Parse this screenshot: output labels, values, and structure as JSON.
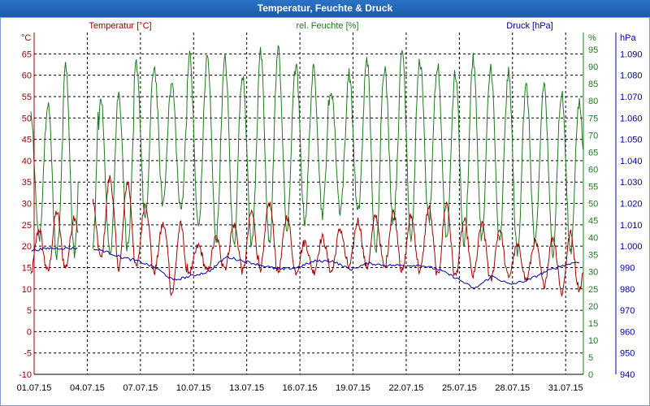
{
  "window": {
    "title": "Temperatur, Feuchte & Druck"
  },
  "colors": {
    "temperature": "#a00000",
    "humidity": "#207820",
    "pressure": "#0000a0",
    "grid": "#000000",
    "title_bar": "#1b5aa8"
  },
  "chart_data": {
    "type": "line",
    "title": "Temperatur, Feuchte & Druck",
    "x_ticks": [
      "01.07.15",
      "04.07.15",
      "07.07.15",
      "10.07.15",
      "13.07.15",
      "16.07.15",
      "19.07.15",
      "22.07.15",
      "25.07.15",
      "28.07.15",
      "31.07.15"
    ],
    "x_range_days": [
      0,
      31
    ],
    "axes": {
      "temperature": {
        "unit_label": "°C",
        "legend": "Temperatur [°C]",
        "ylim": [
          -10,
          70
        ],
        "ticks": [
          -10,
          -5,
          0,
          5,
          10,
          15,
          20,
          25,
          30,
          35,
          40,
          45,
          50,
          55,
          60,
          65
        ]
      },
      "humidity": {
        "unit_label": "%",
        "legend": "rel. Feuchte [%]",
        "ylim": [
          0,
          100
        ],
        "ticks": [
          0,
          5,
          10,
          15,
          20,
          25,
          30,
          35,
          40,
          45,
          50,
          55,
          60,
          65,
          70,
          75,
          80,
          85,
          90,
          95
        ]
      },
      "pressure": {
        "unit_label": "hPa",
        "legend": "Druck [hPa]",
        "ylim": [
          940,
          1100
        ],
        "ticks": [
          "940",
          "950",
          "960",
          "970",
          "980",
          "990",
          "1.000",
          "1.010",
          "1.020",
          "1.030",
          "1.040",
          "1.050",
          "1.060",
          "1.070",
          "1.080",
          "1.090"
        ]
      }
    },
    "series": [
      {
        "name": "Temperatur [°C]",
        "axis": "temperature",
        "gaps": [
          [
            2.5,
            3.3
          ]
        ],
        "daily_min": [
          13,
          14,
          15,
          16,
          17,
          15,
          15,
          14,
          9,
          14,
          14,
          15,
          14,
          15,
          14,
          14,
          14,
          14,
          15,
          15,
          15,
          14,
          14,
          13,
          13,
          13,
          12,
          13,
          12,
          11,
          9,
          10
        ],
        "daily_max": [
          24,
          28,
          27,
          31,
          36,
          35,
          30,
          25,
          25,
          20,
          22,
          25,
          28,
          30,
          27,
          21,
          22,
          24,
          26,
          27,
          28,
          27,
          29,
          30,
          26,
          25,
          24,
          20,
          21,
          22,
          23,
          22
        ]
      },
      {
        "name": "rel. Feuchte [%]",
        "axis": "humidity",
        "gaps": [
          [
            2.5,
            3.3
          ]
        ],
        "daily_min": [
          40,
          35,
          35,
          34,
          35,
          37,
          45,
          50,
          48,
          43,
          40,
          38,
          38,
          38,
          42,
          45,
          47,
          48,
          47,
          35,
          45,
          40,
          45,
          40,
          38,
          40,
          38,
          35,
          38,
          36,
          36,
          40
        ],
        "daily_max": [
          79,
          80,
          90,
          90,
          80,
          82,
          91,
          90,
          85,
          93,
          93,
          92,
          88,
          94,
          95,
          90,
          89,
          83,
          88,
          93,
          90,
          95,
          92,
          90,
          88,
          92,
          90,
          88,
          84,
          85,
          82,
          79
        ]
      },
      {
        "name": "Druck [hPa]",
        "axis": "pressure",
        "gaps": [
          [
            2.5,
            3.3
          ]
        ],
        "daily_mean": [
          998,
          999,
          999,
          999,
          998,
          995,
          993,
          990,
          984,
          986,
          988,
          995,
          993,
          991,
          989,
          990,
          993,
          993,
          989,
          992,
          991,
          991,
          991,
          989,
          985,
          980,
          986,
          982,
          984,
          988,
          991,
          993
        ]
      }
    ]
  }
}
